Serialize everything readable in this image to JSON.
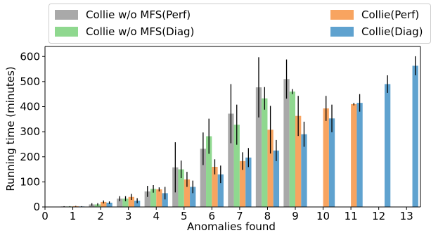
{
  "chart_data": {
    "type": "bar",
    "xlabel": "Anomalies found",
    "ylabel": "Running time (minutes)",
    "x": [
      1,
      2,
      3,
      4,
      5,
      6,
      7,
      8,
      9,
      10,
      11,
      12,
      13
    ],
    "xlim": [
      0,
      13.5
    ],
    "ylim": [
      0,
      640
    ],
    "xticks": [
      "0",
      "1",
      "2",
      "3",
      "4",
      "5",
      "6",
      "7",
      "8",
      "9",
      "10",
      "11",
      "12",
      "13"
    ],
    "yticks": [
      "0",
      "100",
      "200",
      "300",
      "400",
      "500",
      "600"
    ],
    "grid": false,
    "legend_position": "top",
    "series": [
      {
        "name": "Collie w/o MFS(Perf)",
        "color": "#a9a9a9",
        "values": [
          2,
          10,
          33,
          62,
          158,
          232,
          372,
          477,
          510,
          null,
          null,
          null,
          null
        ],
        "errors": [
          1,
          5,
          10,
          22,
          100,
          65,
          118,
          120,
          78,
          null,
          null,
          null,
          null
        ]
      },
      {
        "name": "Collie w/o MFS(Diag)",
        "color": "#8fd88f",
        "values": [
          2,
          10,
          33,
          72,
          150,
          282,
          328,
          433,
          460,
          null,
          null,
          null,
          null
        ],
        "errors": [
          1,
          5,
          10,
          15,
          35,
          70,
          80,
          45,
          10,
          null,
          null,
          null,
          null
        ]
      },
      {
        "name": "Collie(Perf)",
        "color": "#f8a460",
        "values": [
          3,
          20,
          40,
          70,
          110,
          160,
          183,
          308,
          363,
          393,
          410,
          null,
          null
        ],
        "errors": [
          1,
          6,
          12,
          8,
          30,
          30,
          35,
          95,
          80,
          50,
          5,
          null,
          null
        ]
      },
      {
        "name": "Collie(Diag)",
        "color": "#5fa2cf",
        "values": [
          2,
          17,
          25,
          55,
          80,
          130,
          197,
          225,
          290,
          353,
          415,
          490,
          563
        ],
        "errors": [
          1,
          5,
          10,
          25,
          25,
          35,
          38,
          42,
          50,
          55,
          35,
          35,
          38
        ]
      }
    ]
  }
}
